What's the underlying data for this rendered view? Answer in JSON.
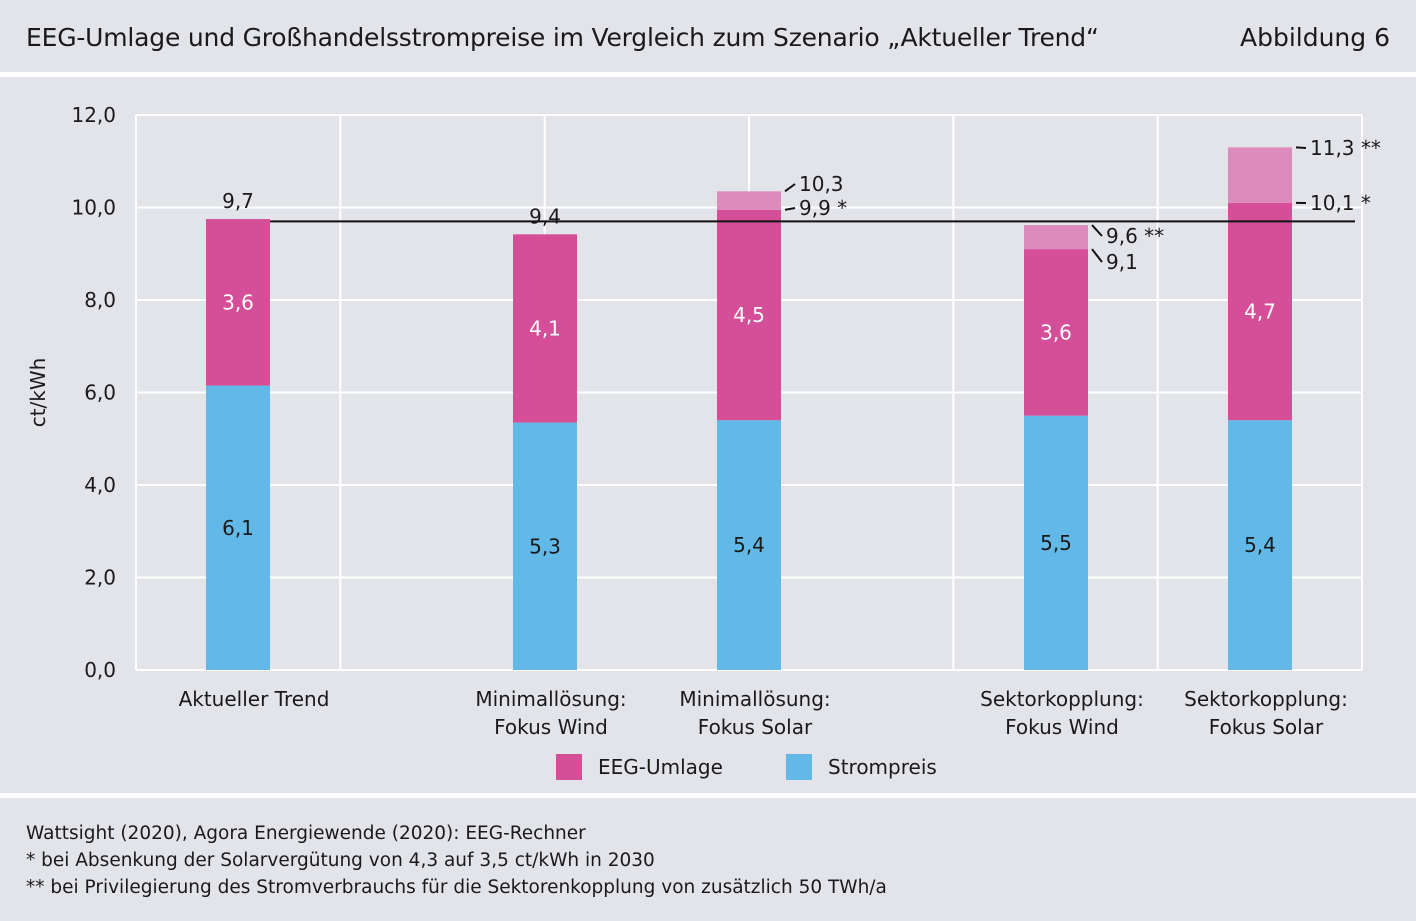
{
  "header": {
    "title": "EEG-Umlage und Großhandelsstrompreise im Vergleich zum Szenario „Aktueller Trend“",
    "figure_label": "Abbildung 6"
  },
  "chart_data": {
    "type": "bar",
    "stacked": true,
    "ylabel": "ct/kWh",
    "ylim": [
      0,
      12
    ],
    "yticks": [
      "0,0",
      "2,0",
      "4,0",
      "6,0",
      "8,0",
      "10,0",
      "12,0"
    ],
    "grid": true,
    "categories": [
      [
        "Aktueller Trend"
      ],
      [
        "Minimallösung:",
        "Fokus Wind"
      ],
      [
        "Minimallösung:",
        "Fokus Solar"
      ],
      [
        "Sektorkopplung:",
        "Fokus Wind"
      ],
      [
        "Sektorkopplung:",
        "Fokus Solar"
      ]
    ],
    "series": [
      {
        "name": "Strompreis",
        "color": "#62b9e7",
        "values": [
          6.15,
          5.35,
          5.4,
          5.5,
          5.4
        ],
        "labels": [
          "6,1",
          "5,3",
          "5,4",
          "5,5",
          "5,4"
        ]
      },
      {
        "name": "EEG-Umlage",
        "color": "#d44f98",
        "values": [
          3.6,
          4.1,
          4.5,
          3.6,
          4.7
        ],
        "labels": [
          "3,6",
          "4,1",
          "4,5",
          "3,6",
          "4,7"
        ]
      }
    ],
    "reduced_totals": [
      null,
      null,
      9.95,
      9.1,
      10.1
    ],
    "full_totals": [
      9.75,
      9.42,
      10.35,
      9.62,
      11.3
    ],
    "extension_color": "#dc8bbc",
    "total_labels": [
      {
        "bar": 0,
        "text": "9,7",
        "value": 9.75,
        "style": "above"
      },
      {
        "bar": 1,
        "text": "9,4",
        "value": 9.42,
        "style": "above"
      },
      {
        "bar": 2,
        "text": "10,3",
        "value": 10.35,
        "style": "leader"
      },
      {
        "bar": 2,
        "text": "9,9 *",
        "value": 9.95,
        "style": "leader"
      },
      {
        "bar": 3,
        "text": "9,6 **",
        "value": 9.62,
        "style": "leader"
      },
      {
        "bar": 3,
        "text": "9,1",
        "value": 9.1,
        "style": "leader"
      },
      {
        "bar": 4,
        "text": "11,3 **",
        "value": 11.3,
        "style": "leader"
      },
      {
        "bar": 4,
        "text": "10,1 *",
        "value": 10.1,
        "style": "leader"
      }
    ],
    "reference_line": 9.7,
    "legend": [
      "EEG-Umlage",
      "Strompreis"
    ],
    "legend_position": "bottom"
  },
  "footer": {
    "lines": [
      "Wattsight (2020), Agora Energiewende (2020): EEG-Rechner",
      "* bei Absenkung der Solarvergütung von 4,3 auf 3,5 ct/kWh in 2030",
      "** bei Privilegierung des Stromverbrauchs für die Sektorenkopplung von zusätzlich 50 TWh/a"
    ]
  },
  "colors": {
    "background": "#e3e4e9",
    "strompreis": "#62b9e7",
    "eeg": "#d44f98",
    "eeg_extension": "#dc8bbc"
  }
}
